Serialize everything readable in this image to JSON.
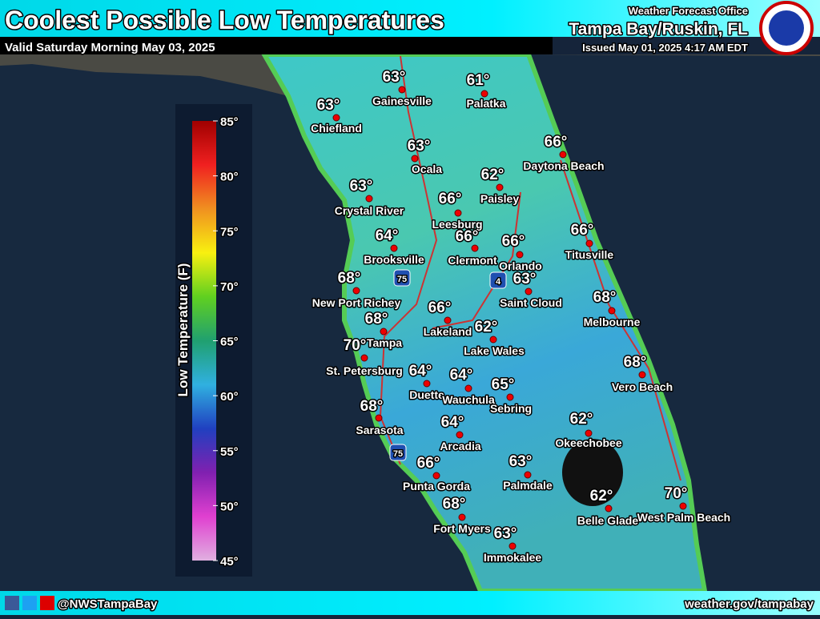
{
  "header": {
    "title": "Coolest Possible Low Temperatures",
    "subtitle": "Valid Saturday Morning May 03, 2025",
    "office": "Weather Forecast Office",
    "location": "Tampa Bay/Ruskin, FL",
    "issued": "Issued May 01, 2025 4:17 AM EDT"
  },
  "legend": {
    "title": "Low Temperature (F)",
    "ticks": [
      "85°",
      "80°",
      "75°",
      "70°",
      "65°",
      "60°",
      "55°",
      "50°",
      "45°"
    ]
  },
  "shields": [
    "75",
    "4",
    "75"
  ],
  "cities": [
    {
      "name": "Gainesville",
      "temp": "63°"
    },
    {
      "name": "Palatka",
      "temp": "61°"
    },
    {
      "name": "Chiefland",
      "temp": "63°"
    },
    {
      "name": "Ocala",
      "temp": "63°"
    },
    {
      "name": "Daytona Beach",
      "temp": "66°"
    },
    {
      "name": "Paisley",
      "temp": "62°"
    },
    {
      "name": "Crystal River",
      "temp": "63°"
    },
    {
      "name": "Leesburg",
      "temp": "66°"
    },
    {
      "name": "Brooksville",
      "temp": "64°"
    },
    {
      "name": "Clermont",
      "temp": "66°"
    },
    {
      "name": "Orlando",
      "temp": "66°"
    },
    {
      "name": "Titusville",
      "temp": "66°"
    },
    {
      "name": "New Port Richey",
      "temp": "68°"
    },
    {
      "name": "Saint Cloud",
      "temp": "63°"
    },
    {
      "name": "Melbourne",
      "temp": "68°"
    },
    {
      "name": "Lakeland",
      "temp": "66°"
    },
    {
      "name": "Tampa",
      "temp": "68°"
    },
    {
      "name": "Lake Wales",
      "temp": "62°"
    },
    {
      "name": "St. Petersburg",
      "temp": "70°"
    },
    {
      "name": "Duette",
      "temp": "64°"
    },
    {
      "name": "Wauchula",
      "temp": "64°"
    },
    {
      "name": "Sebring",
      "temp": "65°"
    },
    {
      "name": "Vero Beach",
      "temp": "68°"
    },
    {
      "name": "Sarasota",
      "temp": "68°"
    },
    {
      "name": "Arcadia",
      "temp": "64°"
    },
    {
      "name": "Okeechobee",
      "temp": "62°"
    },
    {
      "name": "Punta Gorda",
      "temp": "66°"
    },
    {
      "name": "Palmdale",
      "temp": "63°"
    },
    {
      "name": "West Palm Beach",
      "temp": "70°"
    },
    {
      "name": "Belle Glade",
      "temp": "62°"
    },
    {
      "name": "Fort Myers",
      "temp": "68°"
    },
    {
      "name": "Immokalee",
      "temp": "63°"
    }
  ],
  "footer": {
    "handle": "@NWSTampaBay",
    "url": "weather.gov/tampabay"
  }
}
